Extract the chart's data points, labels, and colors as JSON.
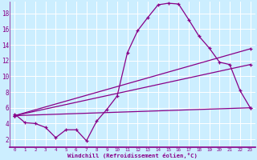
{
  "xlabel": "Windchill (Refroidissement éolien,°C)",
  "bg_color": "#cceeff",
  "line_color": "#880088",
  "grid_color": "#ffffff",
  "xlim": [
    -0.5,
    23.5
  ],
  "ylim": [
    1.0,
    19.5
  ],
  "yticks": [
    2,
    4,
    6,
    8,
    10,
    12,
    14,
    16,
    18
  ],
  "xticks": [
    0,
    1,
    2,
    3,
    4,
    5,
    6,
    7,
    8,
    9,
    10,
    11,
    12,
    13,
    14,
    15,
    16,
    17,
    18,
    19,
    20,
    21,
    22,
    23
  ],
  "series1_x": [
    0,
    1,
    2,
    3,
    4,
    5,
    6,
    7,
    8,
    9,
    10,
    11,
    12,
    13,
    14,
    15,
    16,
    17,
    18,
    19,
    20,
    21,
    22,
    23
  ],
  "series1_y": [
    5.2,
    4.1,
    4.0,
    3.5,
    2.2,
    3.2,
    3.2,
    1.8,
    4.3,
    5.8,
    7.5,
    13.0,
    15.8,
    17.5,
    19.1,
    19.3,
    19.2,
    17.2,
    15.1,
    13.6,
    11.8,
    11.5,
    8.2,
    6.0
  ],
  "line2_x": [
    0,
    23
  ],
  "line2_y": [
    5.0,
    6.0
  ],
  "line3_x": [
    0,
    23
  ],
  "line3_y": [
    5.0,
    11.5
  ],
  "line4_x": [
    0,
    23
  ],
  "line4_y": [
    5.0,
    13.5
  ]
}
